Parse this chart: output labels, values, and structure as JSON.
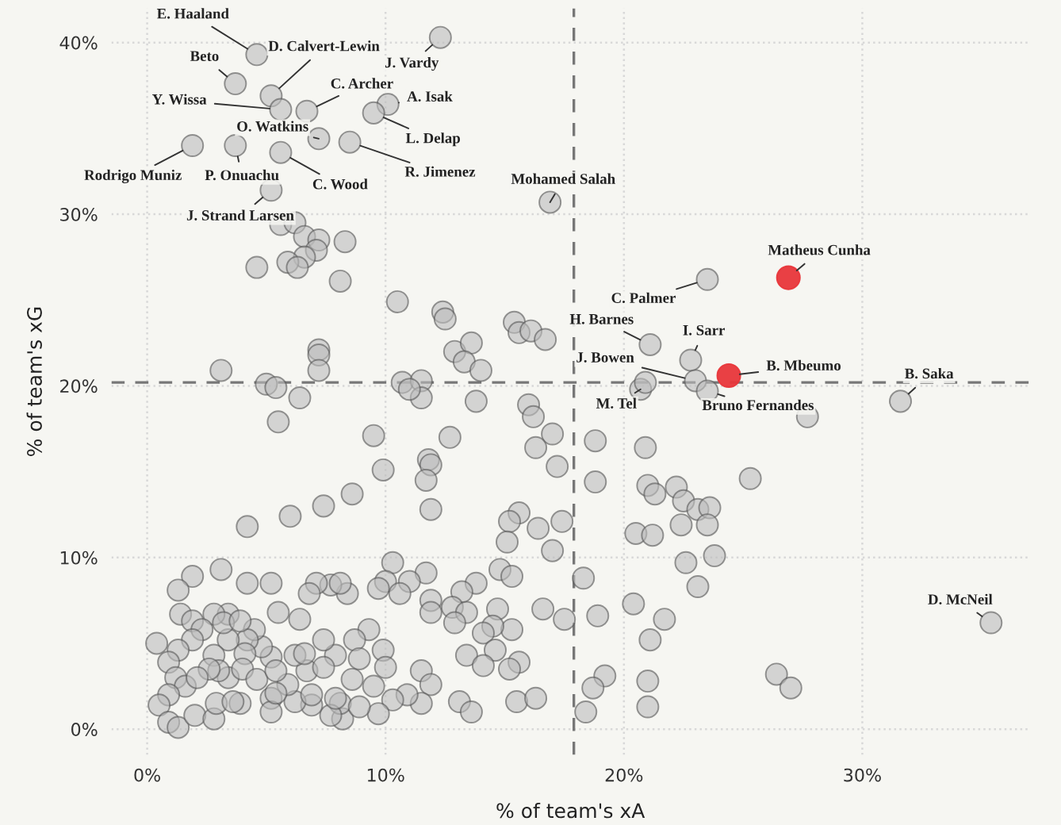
{
  "chart_data": {
    "type": "scatter",
    "xlabel": "% of team's xA",
    "ylabel": "% of team's xG",
    "xlim": [
      -1.5,
      37
    ],
    "ylim": [
      -1.5,
      42
    ],
    "xticks": [
      {
        "value": 0,
        "label": "0%"
      },
      {
        "value": 10,
        "label": "10%"
      },
      {
        "value": 20,
        "label": "20%"
      },
      {
        "value": 30,
        "label": "30%"
      }
    ],
    "yticks": [
      {
        "value": 0,
        "label": "0%"
      },
      {
        "value": 10,
        "label": "10%"
      },
      {
        "value": 20,
        "label": "20%"
      },
      {
        "value": 30,
        "label": "30%"
      },
      {
        "value": 40,
        "label": "40%"
      }
    ],
    "grid": true,
    "marker": "circle",
    "ref_lines": [
      {
        "axis": "x",
        "value": 17.9,
        "line_style": "dashed",
        "color": "#777777"
      },
      {
        "axis": "y",
        "value": 20.2,
        "line_style": "dashed",
        "color": "#777777"
      }
    ],
    "series": [
      {
        "color": "#bdbdbd",
        "x": [
          4.6,
          5.2,
          3.7,
          12.3,
          6.7,
          5.6,
          10.1,
          9.5,
          7.2,
          8.5,
          1.9,
          3.7,
          5.6,
          5.2,
          16.9,
          23.5,
          21.1,
          22.8,
          23.0,
          23.5,
          20.7,
          31.6,
          35.4,
          5.6,
          6.2,
          6.6,
          7.2,
          8.3,
          7.1,
          6.6,
          5.9,
          6.3,
          4.6,
          8.1,
          10.5,
          12.4,
          12.5,
          15.4,
          15.6,
          16.1,
          16.7,
          12.9,
          13.6,
          13.3,
          14.0,
          7.2,
          7.2,
          7.2,
          3.1,
          5.0,
          5.4,
          10.7,
          11.5,
          20.9,
          6.4,
          5.5,
          9.5,
          12.7,
          13.8,
          11.5,
          11.0,
          9.9,
          11.8,
          11.9,
          11.7,
          11.9,
          8.6,
          7.4,
          6.0,
          4.2,
          16.0,
          16.2,
          17.0,
          16.3,
          17.2,
          15.6,
          15.2,
          15.1,
          16.4,
          17.4,
          17.0,
          14.8,
          15.3,
          13.8,
          13.2,
          11.7,
          10.3,
          11.0,
          10.0,
          9.7,
          10.6,
          8.4,
          7.7,
          7.1,
          6.8,
          8.1,
          5.2,
          4.2,
          3.1,
          1.9,
          1.3,
          1.4,
          5.5,
          6.4,
          9.3,
          11.9,
          11.9,
          12.8,
          13.4,
          12.9,
          14.7,
          15.3,
          14.5,
          14.1,
          14.6,
          13.4,
          14.1,
          15.6,
          15.2,
          16.6,
          17.5,
          13.1,
          13.6,
          15.5,
          16.3,
          11.5,
          11.9,
          11.5,
          10.9,
          10.3,
          9.7,
          9.9,
          10.0,
          9.5,
          8.7,
          8.9,
          7.9,
          7.4,
          8.2,
          8.1,
          7.7,
          6.9,
          6.2,
          6.7,
          7.4,
          5.9,
          5.2,
          5.2,
          5.2,
          4.8,
          4.5,
          4.2,
          3.9,
          3.4,
          3.4,
          2.8,
          1.9,
          2.3,
          1.9,
          1.3,
          0.4,
          0.9,
          1.2,
          1.6,
          0.9,
          0.5,
          0.9,
          1.3,
          2.0,
          2.8,
          2.9,
          3.6,
          3.4,
          2.8,
          3.0,
          4.1,
          4.0,
          4.6,
          2.6,
          2.1,
          3.2,
          3.9,
          6.2,
          6.6,
          7.9,
          8.9,
          8.6,
          5.4,
          5.4,
          6.9,
          18.8,
          18.8,
          20.9,
          21.0,
          21.3,
          22.2,
          22.5,
          23.1,
          23.6,
          23.5,
          22.4,
          20.5,
          21.2,
          23.8,
          22.6,
          23.1,
          25.3,
          27.7,
          18.3,
          18.9,
          20.4,
          21.7,
          21.1,
          19.2,
          18.7,
          18.4,
          21.0,
          21.0,
          26.4,
          27.0
        ],
        "values": [
          39.3,
          36.9,
          37.6,
          40.3,
          36.0,
          36.1,
          36.4,
          35.9,
          34.4,
          34.2,
          34.0,
          34.0,
          33.6,
          31.4,
          30.7,
          26.2,
          22.4,
          21.5,
          20.3,
          19.7,
          19.8,
          19.1,
          6.2,
          29.4,
          29.5,
          28.7,
          28.5,
          28.4,
          27.9,
          27.5,
          27.2,
          26.9,
          26.9,
          26.1,
          24.9,
          24.3,
          23.9,
          23.7,
          23.1,
          23.2,
          22.7,
          22.0,
          22.5,
          21.4,
          20.9,
          22.1,
          21.8,
          20.9,
          20.9,
          20.1,
          19.9,
          20.2,
          20.3,
          20.2,
          19.3,
          17.9,
          17.1,
          17.0,
          19.1,
          19.3,
          19.8,
          15.1,
          15.7,
          15.4,
          14.5,
          12.8,
          13.7,
          13.0,
          12.4,
          11.8,
          18.9,
          18.2,
          17.2,
          16.4,
          15.3,
          12.6,
          12.1,
          10.9,
          11.7,
          12.1,
          10.4,
          9.3,
          8.9,
          8.5,
          8.0,
          9.1,
          9.7,
          8.6,
          8.6,
          8.2,
          7.9,
          7.9,
          8.4,
          8.5,
          7.9,
          8.5,
          8.5,
          8.5,
          9.3,
          8.9,
          8.1,
          6.7,
          6.8,
          6.4,
          5.8,
          7.5,
          6.8,
          7.1,
          6.8,
          6.2,
          7.0,
          5.8,
          6.0,
          5.6,
          4.6,
          4.3,
          3.7,
          3.9,
          3.5,
          7.0,
          6.4,
          1.6,
          1.0,
          1.6,
          1.8,
          3.4,
          2.6,
          1.5,
          2.0,
          1.7,
          0.9,
          4.6,
          3.6,
          2.5,
          5.2,
          4.1,
          4.3,
          5.2,
          0.6,
          1.5,
          0.8,
          1.4,
          1.6,
          3.4,
          3.6,
          2.6,
          4.2,
          1.8,
          1.0,
          4.8,
          5.8,
          5.2,
          1.5,
          5.2,
          6.7,
          6.7,
          6.3,
          5.8,
          5.2,
          4.6,
          5.0,
          3.9,
          3.0,
          2.5,
          2.0,
          1.4,
          0.4,
          0.1,
          0.8,
          0.6,
          1.5,
          1.6,
          3.0,
          4.3,
          3.4,
          4.4,
          3.5,
          2.9,
          3.5,
          3.0,
          6.2,
          6.3,
          4.3,
          4.4,
          1.8,
          1.3,
          2.9,
          3.4,
          2.1,
          2.0,
          16.8,
          14.4,
          16.4,
          14.2,
          13.7,
          14.1,
          13.3,
          12.8,
          12.9,
          11.9,
          11.9,
          11.4,
          11.3,
          10.1,
          9.7,
          8.3,
          14.6,
          18.2,
          8.8,
          6.6,
          7.3,
          6.4,
          5.2,
          3.1,
          2.4,
          1.0,
          2.8,
          1.3,
          3.2,
          2.4
        ]
      },
      {
        "color": "#e8363a",
        "x": [
          26.9,
          24.4
        ],
        "values": [
          26.3,
          20.6
        ]
      }
    ],
    "annotations": [
      {
        "text": "E. Haaland",
        "x": 4.6,
        "y": 39.3
      },
      {
        "text": "D. Calvert-Lewin",
        "x": 5.2,
        "y": 36.9
      },
      {
        "text": "Beto",
        "x": 3.7,
        "y": 37.6
      },
      {
        "text": "J. Vardy",
        "x": 12.3,
        "y": 40.3
      },
      {
        "text": "C. Archer",
        "x": 6.7,
        "y": 36.0
      },
      {
        "text": "Y. Wissa",
        "x": 5.6,
        "y": 36.1
      },
      {
        "text": "A. Isak",
        "x": 10.1,
        "y": 36.4
      },
      {
        "text": "L. Delap",
        "x": 9.5,
        "y": 35.9
      },
      {
        "text": "O. Watkins",
        "x": 7.2,
        "y": 34.4
      },
      {
        "text": "R. Jimenez",
        "x": 8.5,
        "y": 34.2
      },
      {
        "text": "Rodrigo Muniz",
        "x": 1.9,
        "y": 34.0
      },
      {
        "text": "P. Onuachu",
        "x": 3.7,
        "y": 34.0
      },
      {
        "text": "C. Wood",
        "x": 5.6,
        "y": 33.6
      },
      {
        "text": "J. Strand Larsen",
        "x": 5.2,
        "y": 31.4
      },
      {
        "text": "Mohamed Salah",
        "x": 16.9,
        "y": 30.7
      },
      {
        "text": "C. Palmer",
        "x": 23.5,
        "y": 26.2
      },
      {
        "text": "Matheus Cunha",
        "x": 26.9,
        "y": 26.3
      },
      {
        "text": "H. Barnes",
        "x": 21.1,
        "y": 22.4
      },
      {
        "text": "I. Sarr",
        "x": 22.8,
        "y": 21.5
      },
      {
        "text": "J. Bowen",
        "x": 23.0,
        "y": 20.3
      },
      {
        "text": "B. Mbeumo",
        "x": 24.4,
        "y": 20.6
      },
      {
        "text": "Bruno Fernandes",
        "x": 23.5,
        "y": 19.7
      },
      {
        "text": "M. Tel",
        "x": 20.7,
        "y": 19.8
      },
      {
        "text": "B. Saka",
        "x": 31.6,
        "y": 19.1
      },
      {
        "text": "D. McNeil",
        "x": 35.4,
        "y": 6.2
      }
    ]
  }
}
